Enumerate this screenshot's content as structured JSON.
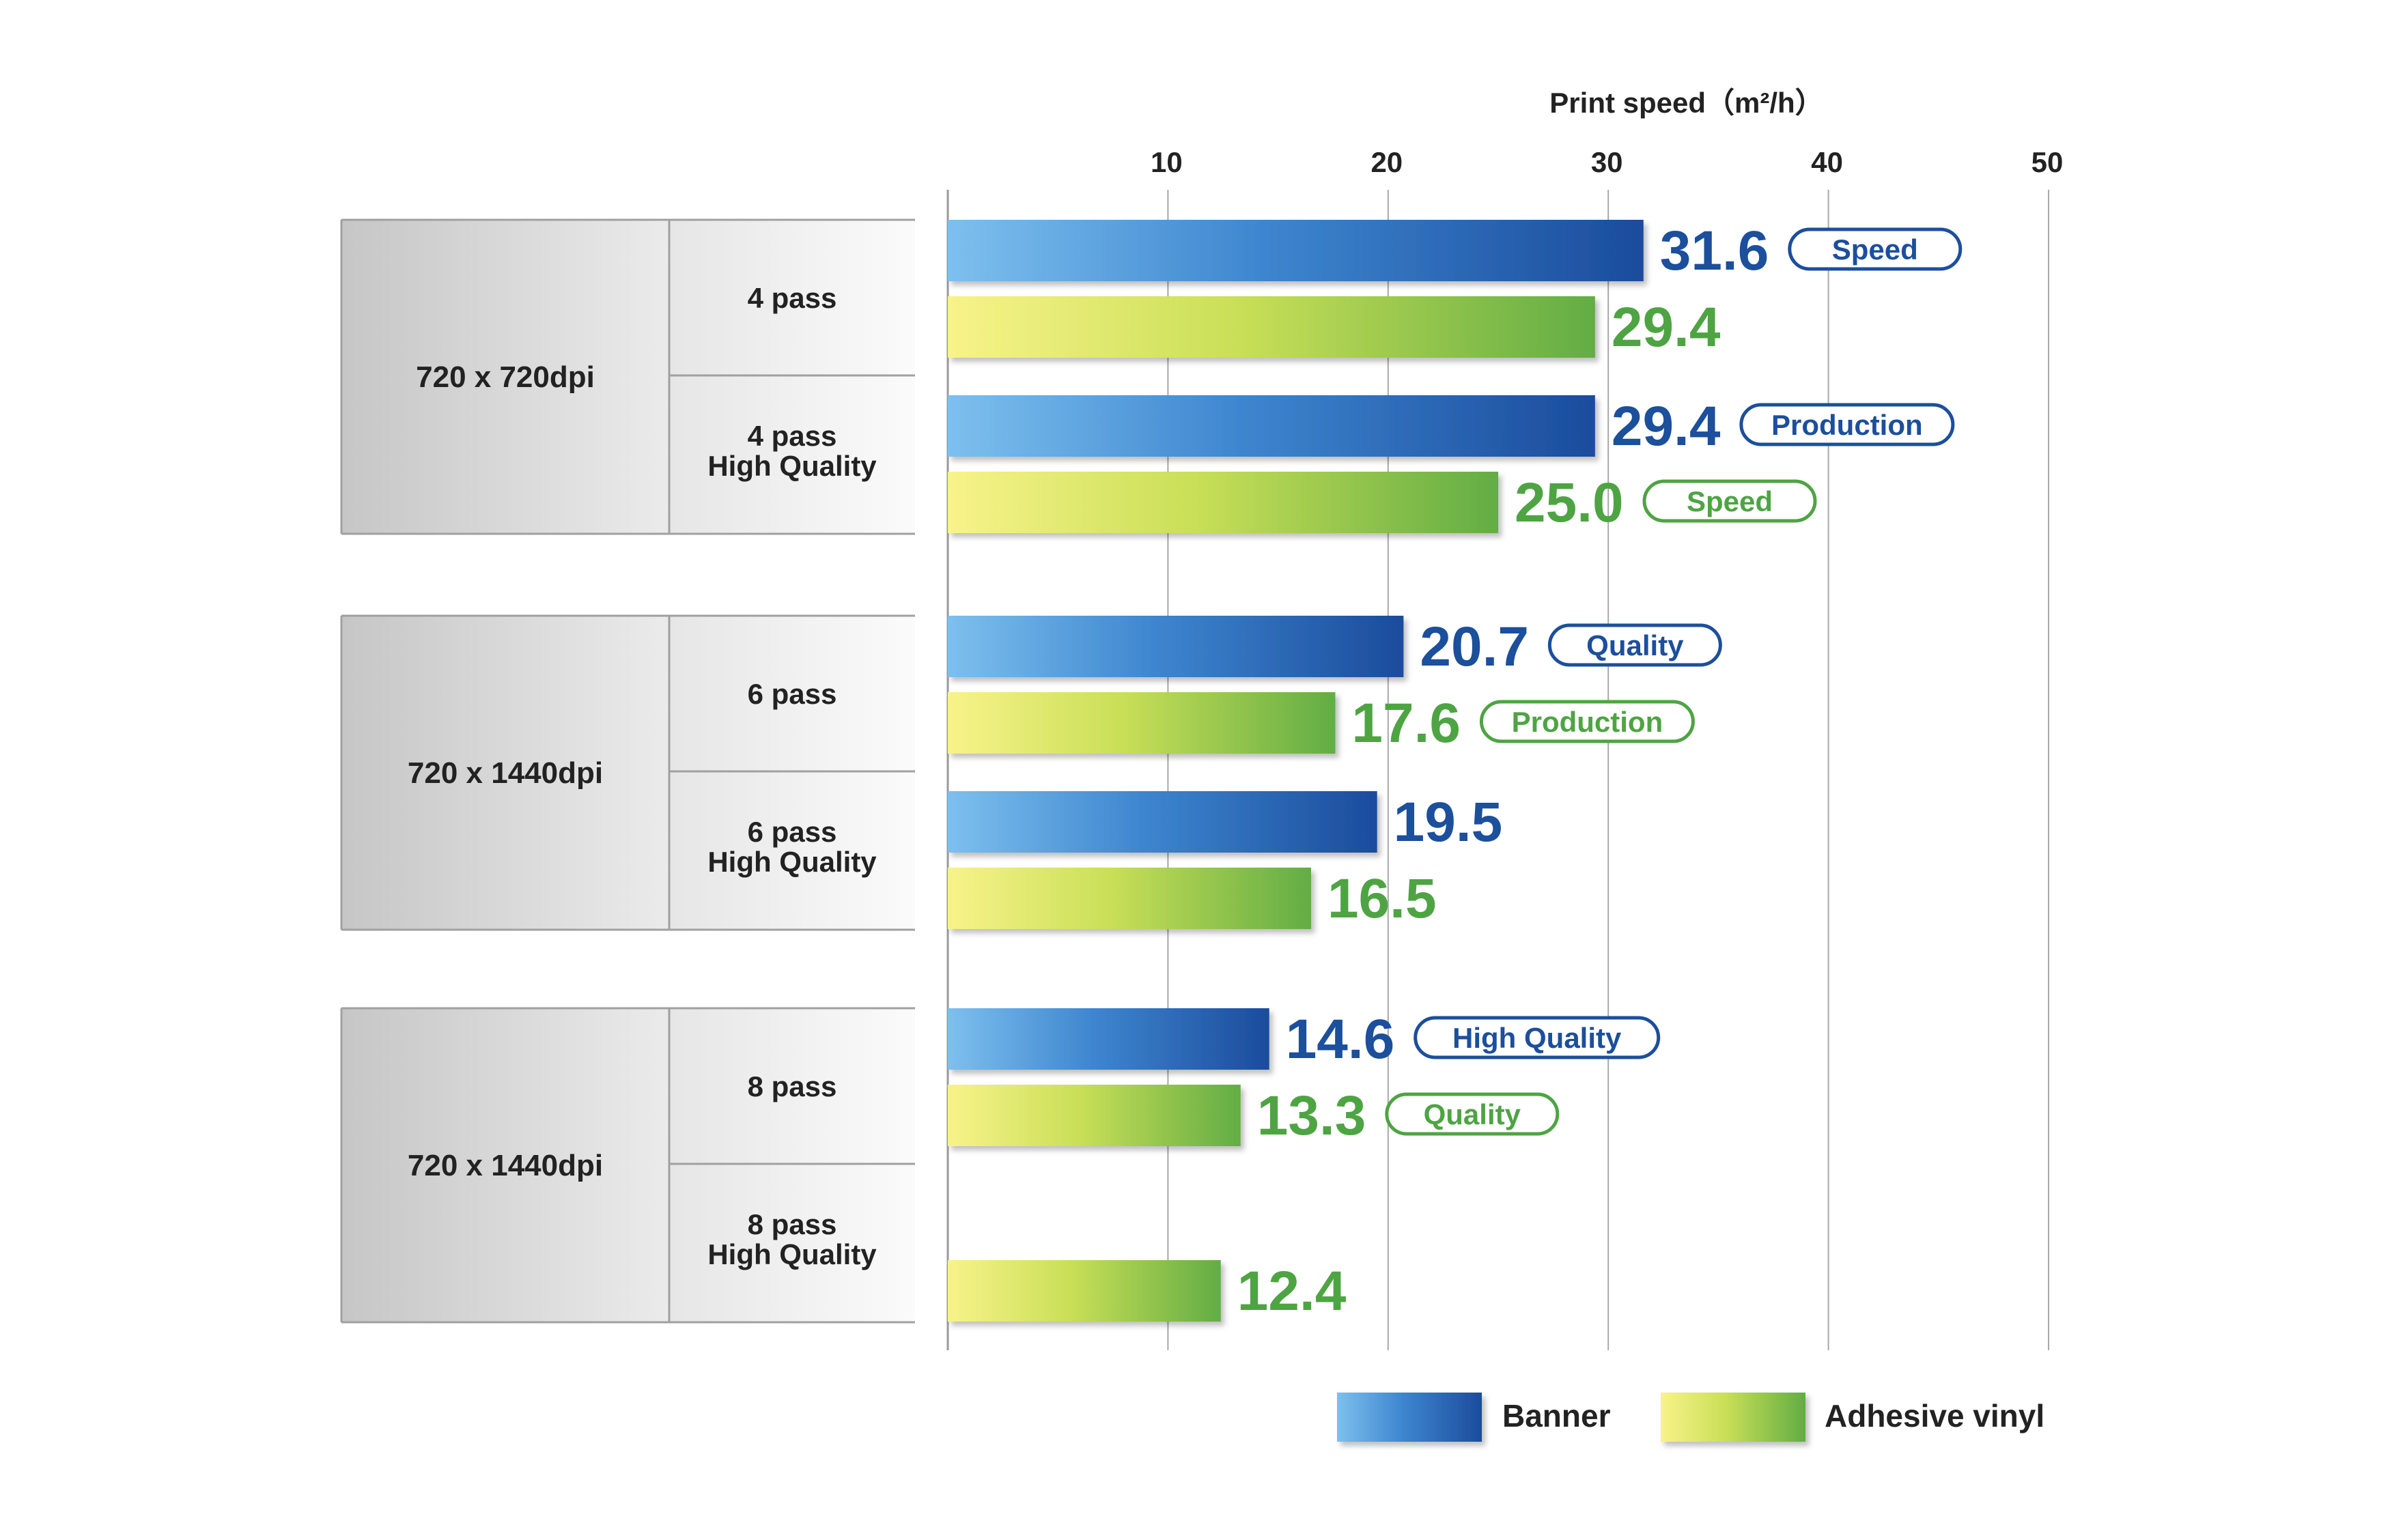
{
  "chart_data": {
    "type": "bar",
    "orientation": "horizontal",
    "title": "Print speed（m²/h）",
    "xlim": [
      0,
      50
    ],
    "x_ticks": [
      "10",
      "20",
      "30",
      "40",
      "50"
    ],
    "grid": true,
    "legend_position": "bottom-right",
    "series": [
      {
        "name": "Banner",
        "color_start": "#7dc0ee",
        "color_end": "#1b4c9c",
        "text_color": "#1c4f9c"
      },
      {
        "name": "Adhesive vinyl",
        "color_start": "#f8f38a",
        "color_end": "#62ad44",
        "text_color": "#4ea443"
      }
    ],
    "groups": [
      {
        "resolution": "720 x 720dpi",
        "rows": [
          {
            "mode_lines": [
              "4 pass"
            ],
            "bars": [
              {
                "series": 0,
                "value": 31.6,
                "label": "31.6",
                "badge": "Speed"
              },
              {
                "series": 1,
                "value": 29.4,
                "label": "29.4",
                "badge": ""
              }
            ]
          },
          {
            "mode_lines": [
              "4 pass",
              "High Quality"
            ],
            "bars": [
              {
                "series": 0,
                "value": 29.4,
                "label": "29.4",
                "badge": "Production"
              },
              {
                "series": 1,
                "value": 25.0,
                "label": "25.0",
                "badge": "Speed"
              }
            ]
          }
        ]
      },
      {
        "resolution": "720 x 1440dpi",
        "rows": [
          {
            "mode_lines": [
              "6 pass"
            ],
            "bars": [
              {
                "series": 0,
                "value": 20.7,
                "label": "20.7",
                "badge": "Quality"
              },
              {
                "series": 1,
                "value": 17.6,
                "label": "17.6",
                "badge": "Production"
              }
            ]
          },
          {
            "mode_lines": [
              "6 pass",
              "High Quality"
            ],
            "bars": [
              {
                "series": 0,
                "value": 19.5,
                "label": "19.5",
                "badge": ""
              },
              {
                "series": 1,
                "value": 16.5,
                "label": "16.5",
                "badge": ""
              }
            ]
          }
        ]
      },
      {
        "resolution": "720 x 1440dpi",
        "rows": [
          {
            "mode_lines": [
              "8 pass"
            ],
            "bars": [
              {
                "series": 0,
                "value": 14.6,
                "label": "14.6",
                "badge": "High Quality"
              },
              {
                "series": 1,
                "value": 13.3,
                "label": "13.3",
                "badge": "Quality"
              }
            ]
          },
          {
            "mode_lines": [
              "8 pass",
              "High Quality"
            ],
            "bars": [
              {
                "series": null,
                "value": null,
                "label": "",
                "badge": ""
              },
              {
                "series": 1,
                "value": 12.4,
                "label": "12.4",
                "badge": ""
              }
            ]
          }
        ]
      }
    ]
  }
}
